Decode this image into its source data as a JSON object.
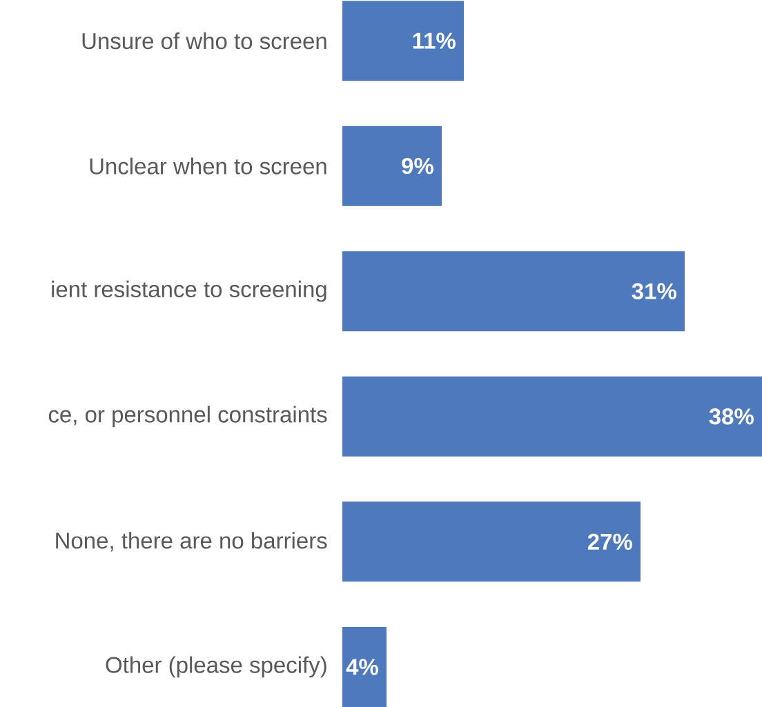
{
  "chart_data": {
    "type": "bar",
    "orientation": "horizontal",
    "color": "#4e7abd",
    "categories": [
      "Unsure of who to screen",
      "Unclear when to screen",
      "ient resistance to screening",
      "ce, or personnel constraints",
      "None, there are no barriers",
      "Other (please specify)"
    ],
    "values": [
      11,
      9,
      31,
      38,
      27,
      4
    ],
    "value_labels": [
      "11%",
      "9%",
      "31%",
      "38%",
      "27%",
      "4%"
    ]
  }
}
